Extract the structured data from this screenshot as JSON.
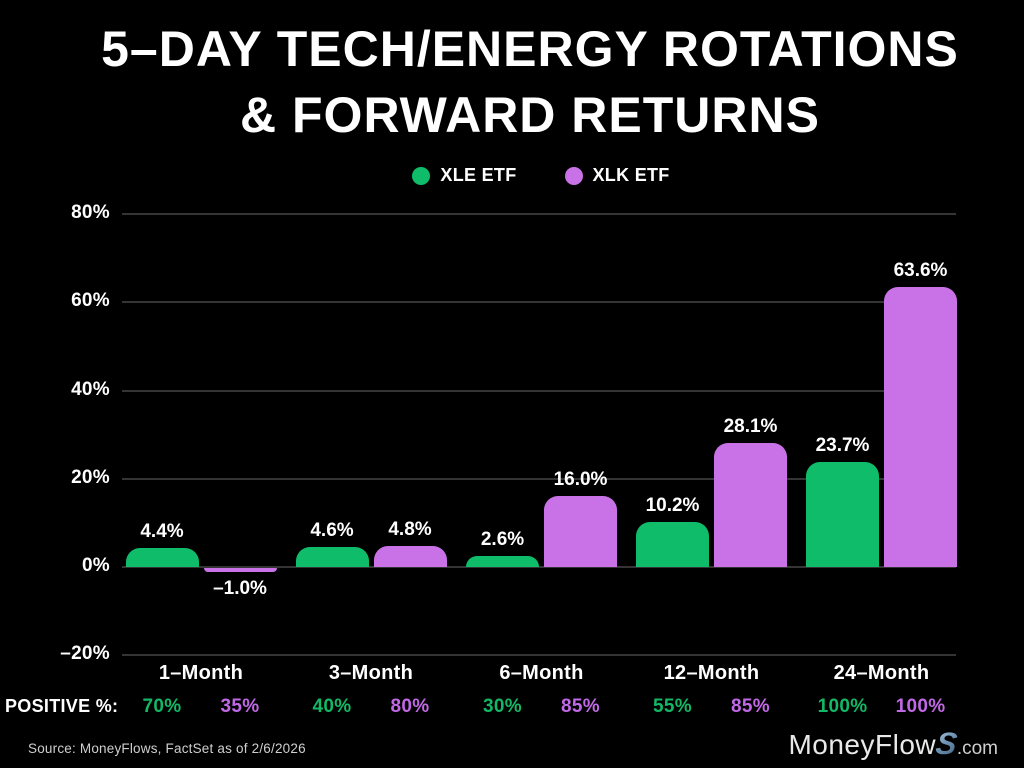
{
  "title": {
    "line1": "5–DAY TECH/ENERGY ROTATIONS",
    "line2": "& FORWARD RETURNS"
  },
  "legend": [
    {
      "label": "XLE ETF",
      "color": "#0fbc69"
    },
    {
      "label": "XLK ETF",
      "color": "#c971e7"
    }
  ],
  "chart_data": {
    "type": "bar",
    "title": "5–DAY TECH/ENERGY ROTATIONS & FORWARD RETURNS",
    "categories": [
      "1–Month",
      "3–Month",
      "6–Month",
      "12–Month",
      "24–Month"
    ],
    "series": [
      {
        "name": "XLE ETF",
        "color": "#0fbc69",
        "text_color": "#12b865",
        "values": [
          4.4,
          4.6,
          2.6,
          10.2,
          23.7
        ],
        "labels": [
          "4.4%",
          "4.6%",
          "2.6%",
          "10.2%",
          "23.7%"
        ],
        "positive_pct": [
          "70%",
          "40%",
          "30%",
          "55%",
          "100%"
        ]
      },
      {
        "name": "XLK ETF",
        "color": "#c971e7",
        "text_color": "#c168e6",
        "values": [
          -1.0,
          4.8,
          16.0,
          28.1,
          63.6
        ],
        "labels": [
          "–1.0%",
          "4.8%",
          "16.0%",
          "28.1%",
          "63.6%"
        ],
        "positive_pct": [
          "35%",
          "80%",
          "85%",
          "85%",
          "100%"
        ]
      }
    ],
    "ylim": [
      -20,
      80
    ],
    "y_ticks": [
      {
        "value": 80,
        "label": "80%"
      },
      {
        "value": 60,
        "label": "60%"
      },
      {
        "value": 40,
        "label": "40%"
      },
      {
        "value": 20,
        "label": "20%"
      },
      {
        "value": 0,
        "label": "0%"
      },
      {
        "value": -20,
        "label": "–20%"
      }
    ],
    "grid": true,
    "legend_position": "top"
  },
  "positive_row": {
    "label": "POSITIVE %:"
  },
  "footer": {
    "source": "Source: MoneyFlows, FactSet as of 2/6/2026",
    "logo": {
      "part1": "MoneyFlow",
      "s": "S",
      "part2": ".com"
    }
  },
  "colors": {
    "background": "#000000",
    "gridline": "#343434",
    "text": "#ffffff",
    "source_text": "#cfcfcf"
  }
}
